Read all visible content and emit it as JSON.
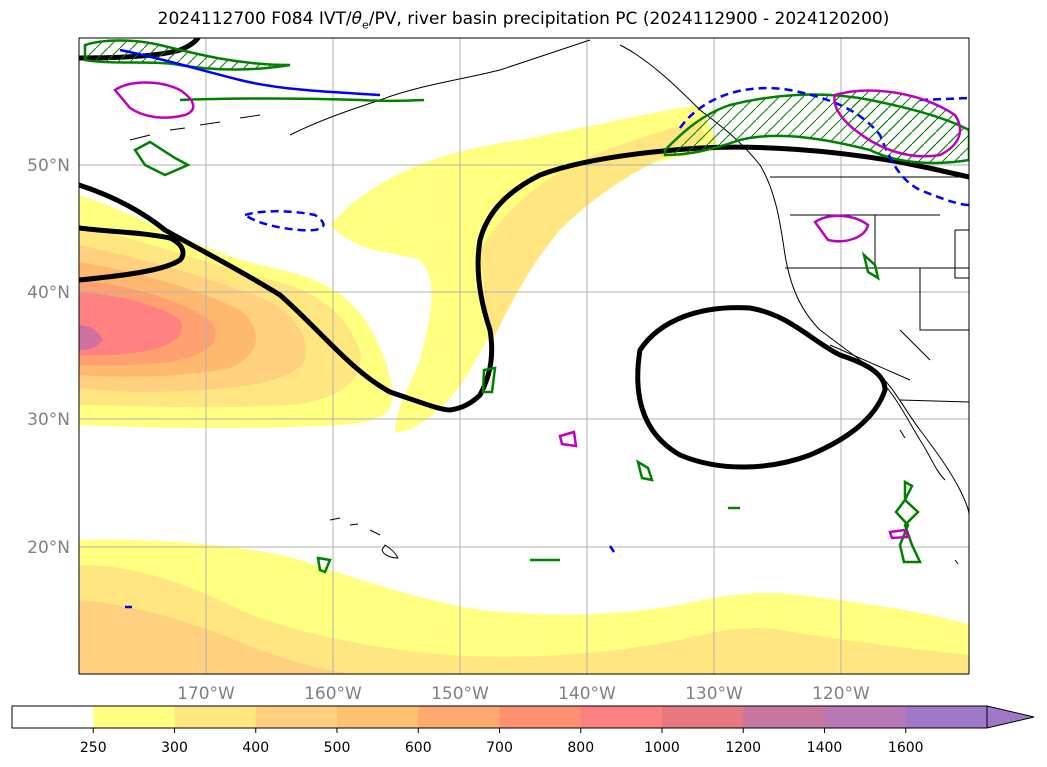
{
  "title": {
    "prefix": "2024112700 F084 IVT/",
    "theta": "θ",
    "theta_sub": "e",
    "suffix": "/PV, river basin precipitation PC (2024112900 - 2024120200)"
  },
  "map": {
    "lat_labels": [
      "50°N",
      "40°N",
      "30°N",
      "20°N"
    ],
    "lat_values": [
      50,
      40,
      30,
      20
    ],
    "lon_labels": [
      "170°W",
      "160°W",
      "150°W",
      "140°W",
      "130°W",
      "120°W"
    ],
    "lon_values": [
      -170,
      -160,
      -150,
      -140,
      -130,
      -120
    ],
    "lon_range": [
      -180,
      -110
    ],
    "lat_range": [
      10,
      60
    ],
    "gridline_color": "#b0b0b0",
    "ivt_colors": {
      "c250": "#ffff80",
      "c300": "#ffe680",
      "c400": "#ffd080",
      "c500": "#ffb870",
      "c600": "#ffa070",
      "c800": "#ff8080",
      "c1200": "#d070a0"
    },
    "contour_colors": {
      "theta_e": "#000000",
      "pv_positive": "#008000",
      "pv_negative": "#0000ff",
      "precip": "#c000c0"
    }
  },
  "colorbar": {
    "labels": [
      "250",
      "300",
      "400",
      "500",
      "600",
      "700",
      "800",
      "1000",
      "1200",
      "1400",
      "1600"
    ],
    "colors": [
      "#ffffff",
      "#ffff80",
      "#ffe680",
      "#ffd080",
      "#ffc070",
      "#ffa870",
      "#ff9070",
      "#ff8080",
      "#e87880",
      "#c878a0",
      "#b878b8",
      "#a078c8"
    ],
    "extend": "max"
  }
}
